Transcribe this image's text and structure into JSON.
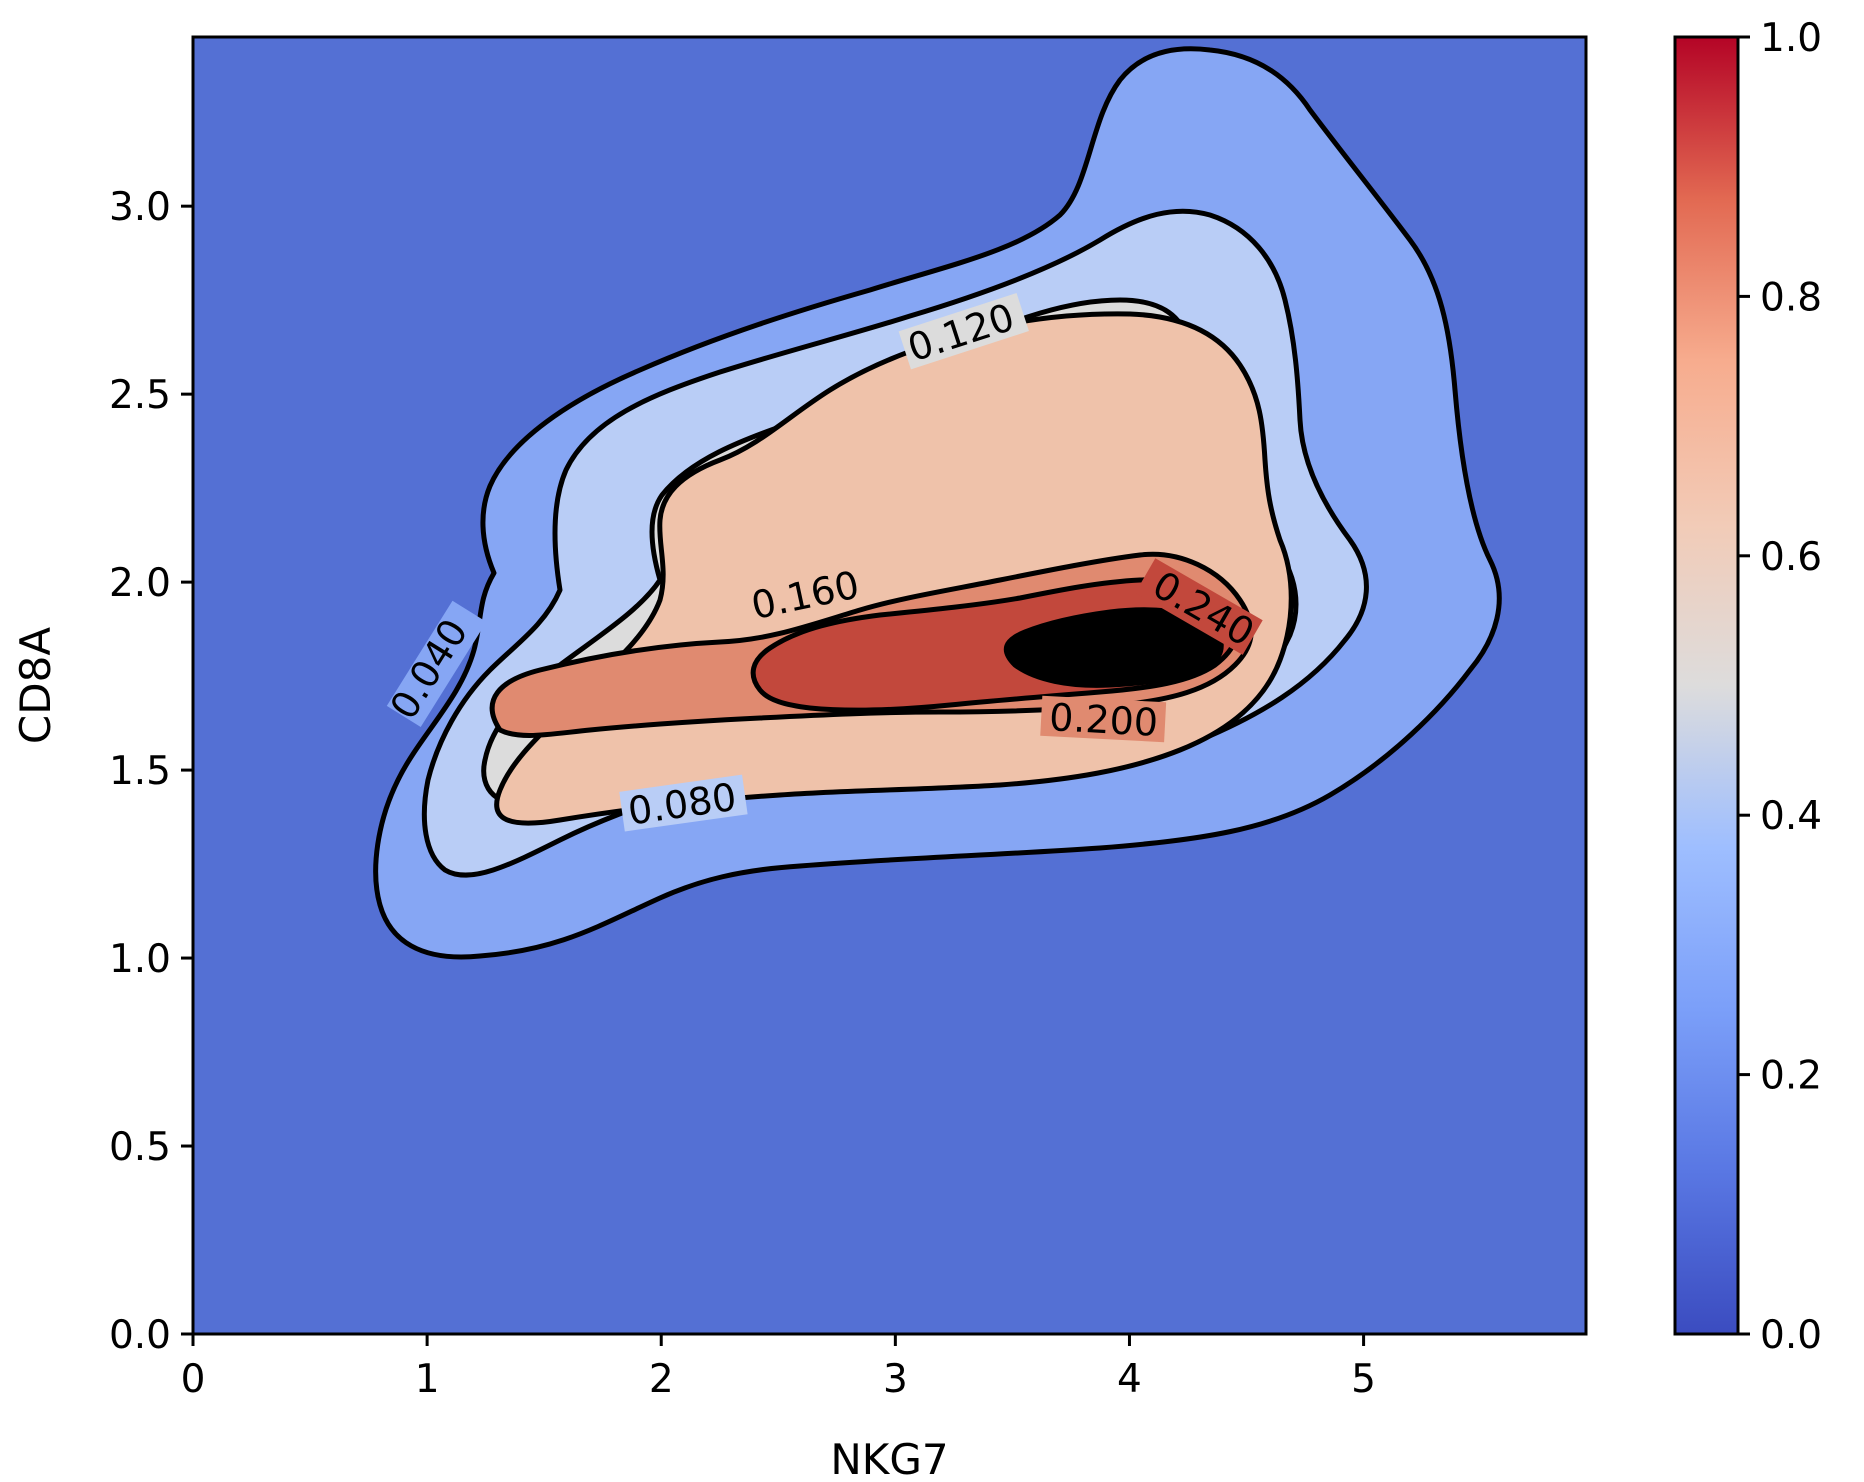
{
  "chart_data": {
    "type": "heatmap",
    "subtype": "filled-contour-density",
    "title": "",
    "xlabel": "NKG7",
    "ylabel": "CD8A",
    "xlim": [
      0,
      5.95
    ],
    "ylim": [
      0,
      3.45
    ],
    "x_ticks": [
      0,
      1,
      2,
      3,
      4,
      5
    ],
    "x_tick_labels": [
      "0",
      "1",
      "2",
      "3",
      "4",
      "5"
    ],
    "y_ticks": [
      0.0,
      0.5,
      1.0,
      1.5,
      2.0,
      2.5,
      3.0
    ],
    "y_tick_labels": [
      "0.0",
      "0.5",
      "1.0",
      "1.5",
      "2.0",
      "2.5",
      "3.0"
    ],
    "grid": false,
    "colormap": "coolwarm",
    "colorbar": {
      "ticks": [
        0.0,
        0.2,
        0.4,
        0.6,
        0.8,
        1.0
      ],
      "tick_labels": [
        "0.0",
        "0.2",
        "0.4",
        "0.6",
        "0.8",
        "1.0"
      ],
      "range": [
        0.0,
        1.0
      ]
    },
    "contour_levels": [
      0.04,
      0.08,
      0.12,
      0.16,
      0.2,
      0.24
    ],
    "contour_labels": [
      "0.040",
      "0.080",
      "0.120",
      "0.160",
      "0.200",
      "0.240"
    ],
    "density_peak": {
      "x": 4.3,
      "y": 1.75
    },
    "band_colors": [
      "#5470d4",
      "#86a6f4",
      "#b9cdf6",
      "#dcdcdc",
      "#efc2aa",
      "#e08a70",
      "#c2483c"
    ]
  }
}
